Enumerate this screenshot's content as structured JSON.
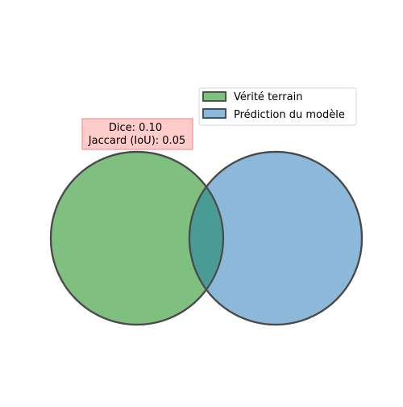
{
  "metrics": {
    "dice_label": "Dice: 0.10",
    "jaccard_label": "Jaccard (IoU): 0.05",
    "box_fill": "#ffcccc",
    "box_stroke": "#f08080"
  },
  "legend": {
    "items": [
      {
        "label": "Vérité terrain",
        "color": "#7fbf7f",
        "edge": "#3f5f3f"
      },
      {
        "label": "Prédiction du modèle",
        "color": "#8cb8d9",
        "edge": "#3f5266"
      }
    ]
  },
  "sets": [
    {
      "name": "Vérité terrain",
      "color": "#7fbf7f",
      "edge": "#4a4a4a"
    },
    {
      "name": "Prédiction du modèle",
      "color": "#8cb8d9",
      "edge": "#4a4a4a"
    }
  ],
  "overlap_color": "#4a9a96"
}
